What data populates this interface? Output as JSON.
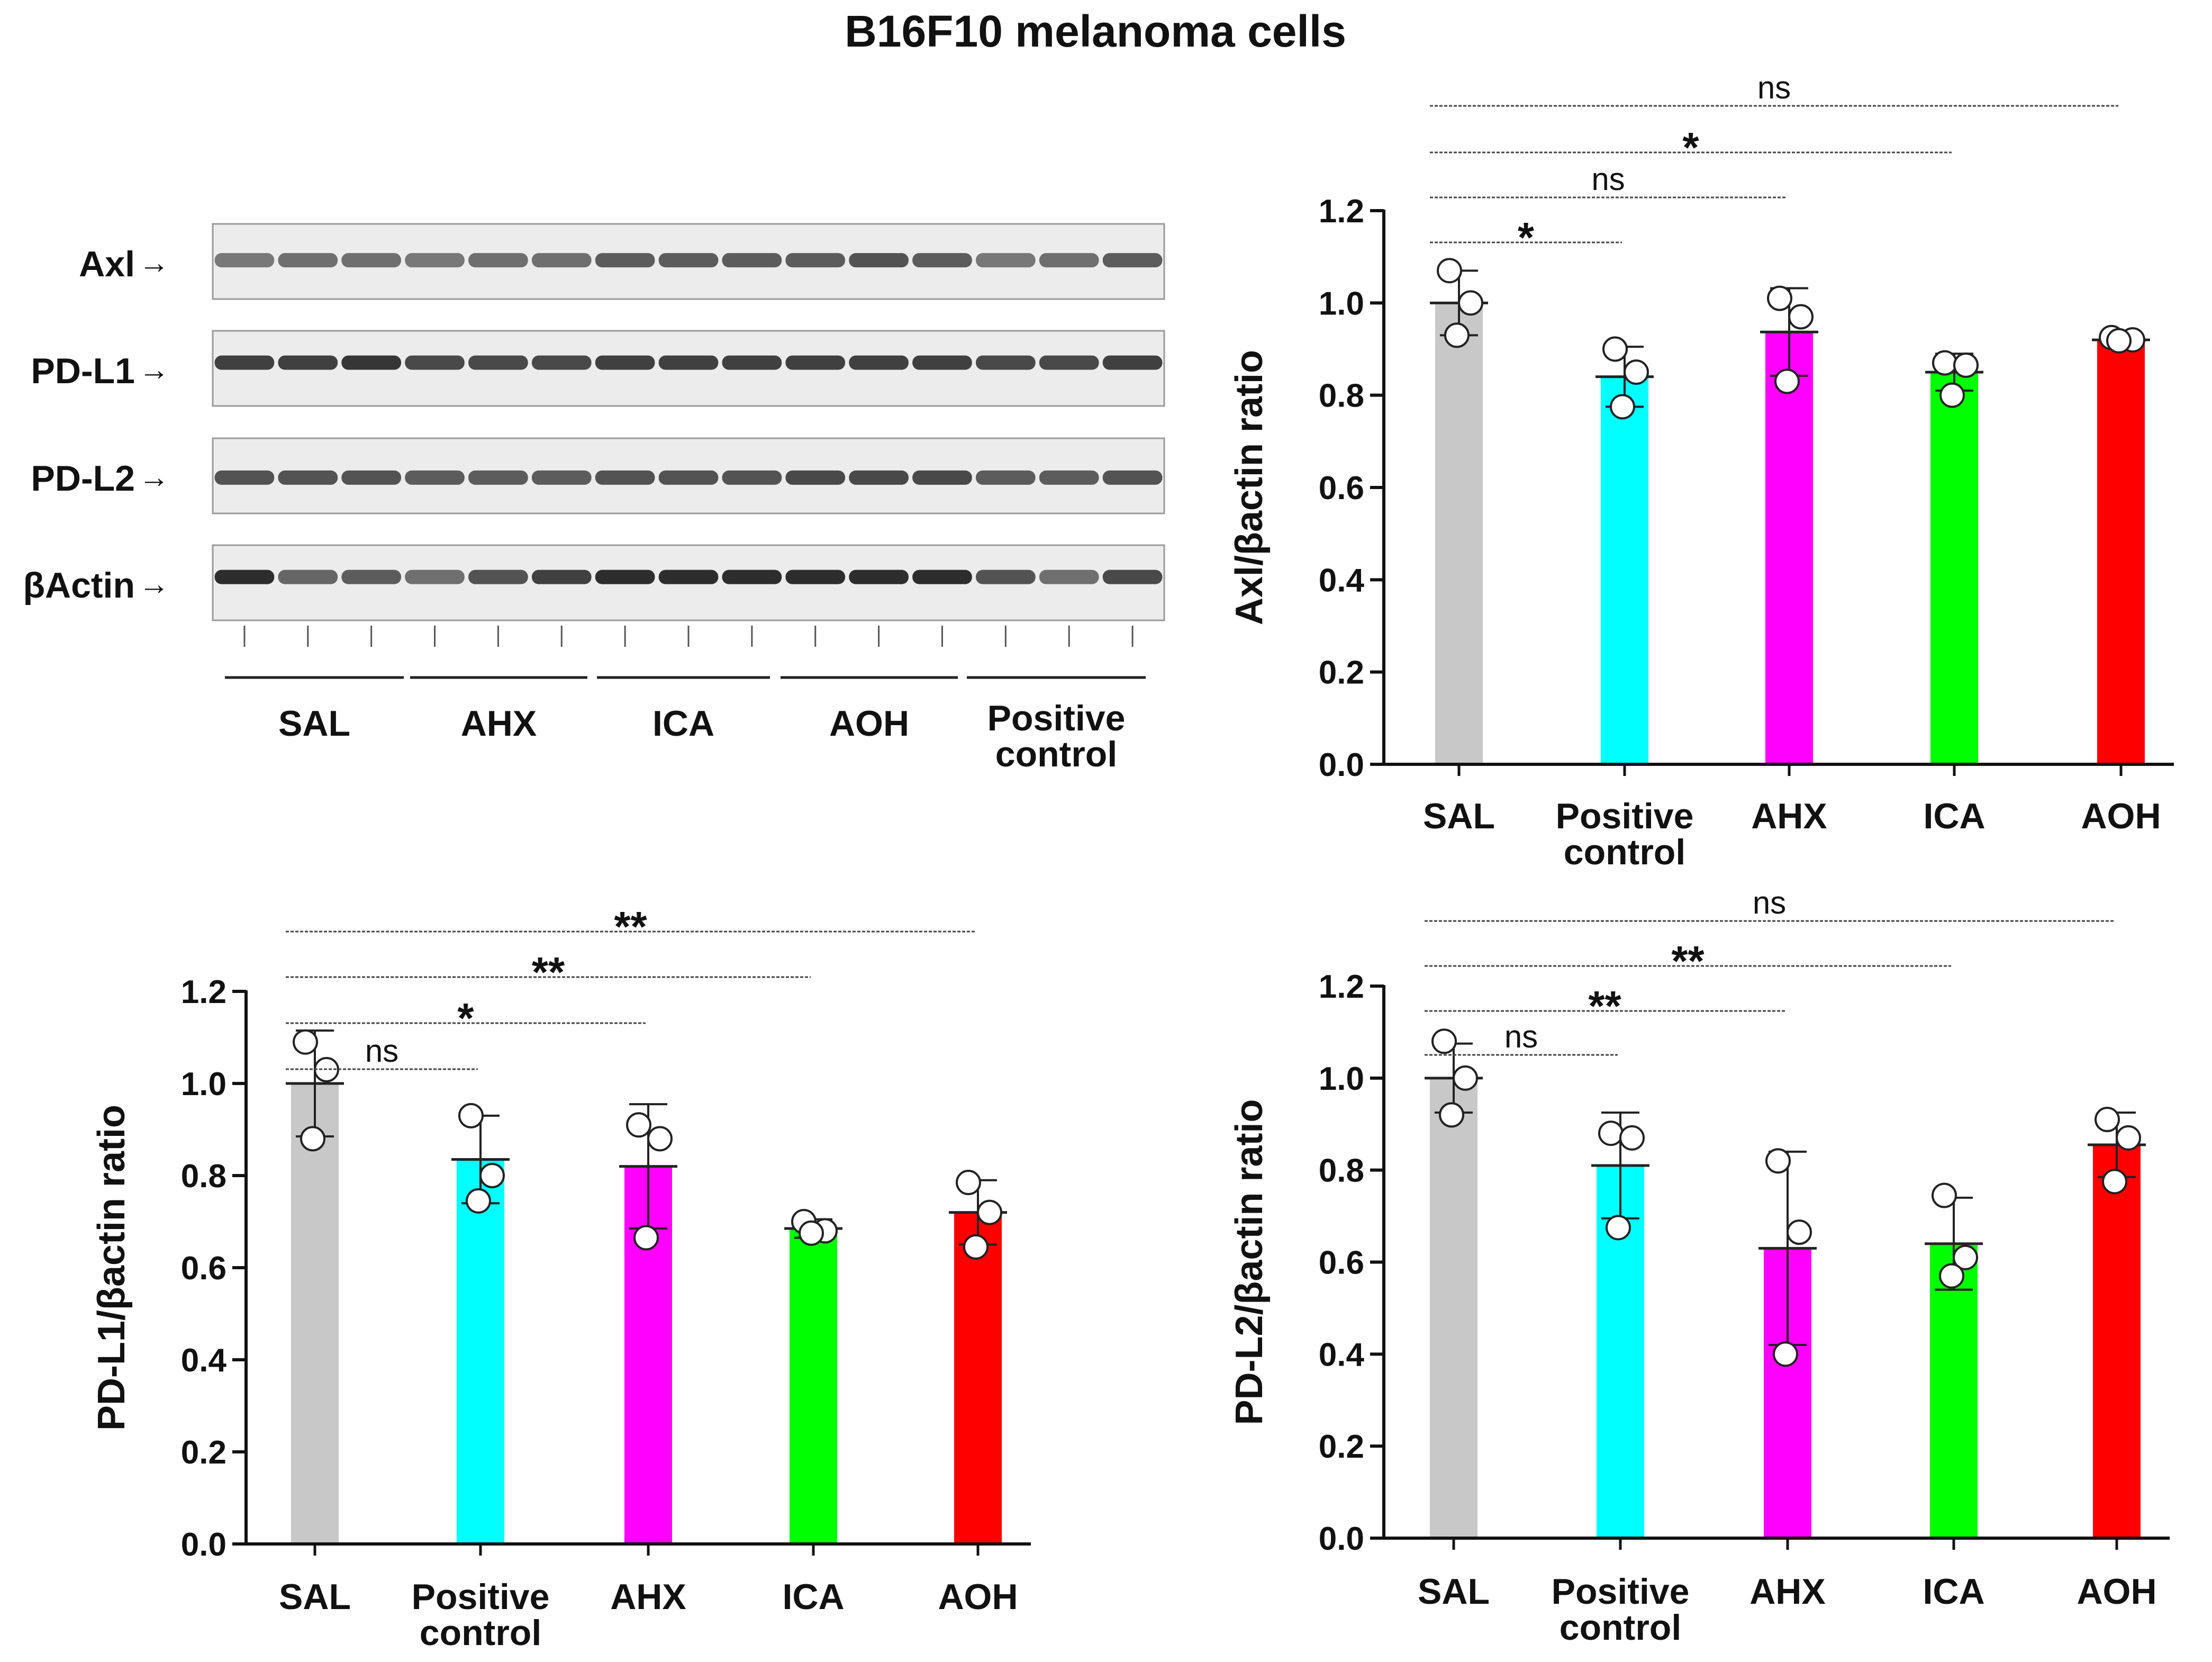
{
  "figure_title": "B16F10 melanoma cells",
  "blot": {
    "rows": [
      {
        "label": "Axl",
        "intensities": [
          0.55,
          0.6,
          0.6,
          0.55,
          0.6,
          0.6,
          0.7,
          0.7,
          0.7,
          0.7,
          0.75,
          0.7,
          0.55,
          0.6,
          0.7
        ]
      },
      {
        "label": "PD-L1",
        "intensities": [
          0.85,
          0.85,
          0.9,
          0.8,
          0.8,
          0.8,
          0.85,
          0.85,
          0.85,
          0.85,
          0.85,
          0.85,
          0.8,
          0.8,
          0.85
        ]
      },
      {
        "label": "PD-L2",
        "intensities": [
          0.75,
          0.75,
          0.75,
          0.7,
          0.7,
          0.7,
          0.75,
          0.75,
          0.75,
          0.8,
          0.8,
          0.8,
          0.7,
          0.7,
          0.75
        ]
      },
      {
        "label": "βActin",
        "intensities": [
          0.95,
          0.65,
          0.7,
          0.6,
          0.75,
          0.85,
          0.95,
          0.95,
          0.95,
          0.95,
          0.95,
          0.95,
          0.75,
          0.6,
          0.8
        ]
      }
    ],
    "groups": [
      {
        "label": "SAL"
      },
      {
        "label": "AHX"
      },
      {
        "label": "ICA"
      },
      {
        "label": "AOH"
      },
      {
        "label": "Positive control"
      }
    ],
    "arrow_glyph": "→"
  },
  "chart_data": [
    {
      "id": "axl",
      "type": "bar",
      "ylabel": "Axl/βactin ratio",
      "ylim": [
        0,
        1.2
      ],
      "yticks": [
        "0.0",
        "0.2",
        "0.4",
        "0.6",
        "0.8",
        "1.0",
        "1.2"
      ],
      "categories": [
        "SAL",
        "Positive control",
        "AHX",
        "ICA",
        "AOH"
      ],
      "colors": [
        "#c8c8c8",
        "#00ffff",
        "#ff00ff",
        "#00ff00",
        "#ff0000"
      ],
      "values": [
        1.0,
        0.84,
        0.937,
        0.85,
        0.92
      ],
      "errors": [
        0.07,
        0.065,
        0.095,
        0.04,
        0.005
      ],
      "points": [
        [
          1.07,
          1.0,
          0.93
        ],
        [
          0.9,
          0.85,
          0.775
        ],
        [
          1.01,
          0.97,
          0.83
        ],
        [
          0.87,
          0.865,
          0.8
        ],
        [
          0.925,
          0.92,
          0.918
        ]
      ],
      "comparisons": [
        {
          "from": 0,
          "to": 1,
          "label": "*"
        },
        {
          "from": 0,
          "to": 2,
          "label": "ns"
        },
        {
          "from": 0,
          "to": 3,
          "label": "*"
        },
        {
          "from": 0,
          "to": 4,
          "label": "ns"
        }
      ]
    },
    {
      "id": "pdl1",
      "type": "bar",
      "ylabel": "PD-L1/βactin ratio",
      "ylim": [
        0,
        1.2
      ],
      "yticks": [
        "0.0",
        "0.2",
        "0.4",
        "0.6",
        "0.8",
        "1.0",
        "1.2"
      ],
      "categories": [
        "SAL",
        "Positive control",
        "AHX",
        "ICA",
        "AOH"
      ],
      "colors": [
        "#c8c8c8",
        "#00ffff",
        "#ff00ff",
        "#00ff00",
        "#ff0000"
      ],
      "values": [
        1.0,
        0.835,
        0.82,
        0.685,
        0.72
      ],
      "errors": [
        0.115,
        0.095,
        0.135,
        0.02,
        0.07
      ],
      "points": [
        [
          1.09,
          1.03,
          0.88
        ],
        [
          0.93,
          0.8,
          0.745
        ],
        [
          0.91,
          0.88,
          0.665
        ],
        [
          0.7,
          0.68,
          0.675
        ],
        [
          0.785,
          0.72,
          0.645
        ]
      ],
      "comparisons": [
        {
          "from": 0,
          "to": 1,
          "label": "ns"
        },
        {
          "from": 0,
          "to": 2,
          "label": "*"
        },
        {
          "from": 0,
          "to": 3,
          "label": "**"
        },
        {
          "from": 0,
          "to": 4,
          "label": "**"
        }
      ]
    },
    {
      "id": "pdl2",
      "type": "bar",
      "ylabel": "PD-L2/βactin ratio",
      "ylim": [
        0,
        1.2
      ],
      "yticks": [
        "0.0",
        "0.2",
        "0.4",
        "0.6",
        "0.8",
        "1.0",
        "1.2"
      ],
      "categories": [
        "SAL",
        "Positive control",
        "AHX",
        "ICA",
        "AOH"
      ],
      "colors": [
        "#c8c8c8",
        "#00ffff",
        "#ff00ff",
        "#00ff00",
        "#ff0000"
      ],
      "values": [
        1.0,
        0.81,
        0.63,
        0.64,
        0.855
      ],
      "errors": [
        0.075,
        0.115,
        0.21,
        0.1,
        0.07
      ],
      "points": [
        [
          1.08,
          1.0,
          0.92
        ],
        [
          0.88,
          0.87,
          0.675
        ],
        [
          0.82,
          0.665,
          0.4
        ],
        [
          0.745,
          0.61,
          0.57
        ],
        [
          0.91,
          0.87,
          0.775
        ]
      ],
      "comparisons": [
        {
          "from": 0,
          "to": 1,
          "label": "ns"
        },
        {
          "from": 0,
          "to": 2,
          "label": "**"
        },
        {
          "from": 0,
          "to": 3,
          "label": "**"
        },
        {
          "from": 0,
          "to": 4,
          "label": "ns"
        }
      ]
    }
  ]
}
